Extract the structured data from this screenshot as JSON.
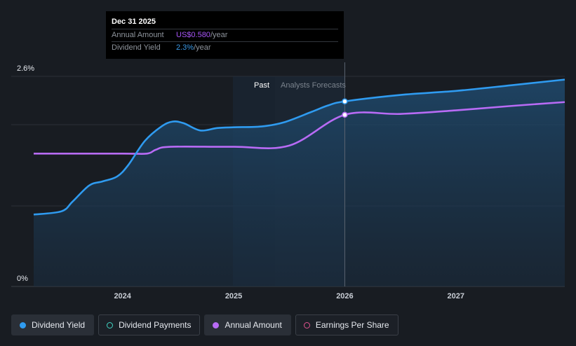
{
  "tooltip": {
    "date": "Dec 31 2025",
    "rows": [
      {
        "label": "Annual Amount",
        "value": "US$0.580",
        "unit": "/year",
        "color": "#a855f7"
      },
      {
        "label": "Dividend Yield",
        "value": "2.3%",
        "unit": "/year",
        "color": "#3b9ae8"
      }
    ]
  },
  "regions": {
    "past_label": "Past",
    "forecast_label": "Analysts Forecasts"
  },
  "legend": [
    {
      "label": "Dividend Yield",
      "color": "#2f9bf0",
      "style": "filled",
      "active": true
    },
    {
      "label": "Dividend Payments",
      "color": "#3fd6c4",
      "style": "hollow",
      "active": false
    },
    {
      "label": "Annual Amount",
      "color": "#b86bf5",
      "style": "filled",
      "active": true
    },
    {
      "label": "Earnings Per Share",
      "color": "#e0528f",
      "style": "hollow",
      "active": false
    }
  ],
  "chart_data": {
    "type": "line",
    "xlabel": "",
    "ylabel": "",
    "x_ticks": [
      2024,
      2025,
      2026,
      2027
    ],
    "xlim": [
      2023.2,
      2027.98
    ],
    "ylim": [
      0,
      2.6
    ],
    "y_tick_labels": [
      "0%",
      "2.6%"
    ],
    "past_end": 2026.0,
    "series": [
      {
        "name": "Dividend Yield",
        "color": "#2f9bf0",
        "unit": "%",
        "points": [
          [
            2023.2,
            0.89
          ],
          [
            2023.45,
            0.93
          ],
          [
            2023.55,
            1.05
          ],
          [
            2023.7,
            1.25
          ],
          [
            2023.82,
            1.3
          ],
          [
            2023.95,
            1.36
          ],
          [
            2024.05,
            1.5
          ],
          [
            2024.2,
            1.8
          ],
          [
            2024.35,
            1.98
          ],
          [
            2024.45,
            2.04
          ],
          [
            2024.55,
            2.02
          ],
          [
            2024.7,
            1.93
          ],
          [
            2024.85,
            1.96
          ],
          [
            2025.0,
            1.97
          ],
          [
            2025.25,
            1.98
          ],
          [
            2025.45,
            2.03
          ],
          [
            2025.7,
            2.16
          ],
          [
            2025.85,
            2.24
          ],
          [
            2026.0,
            2.29
          ],
          [
            2026.5,
            2.37
          ],
          [
            2027.0,
            2.42
          ],
          [
            2027.5,
            2.49
          ],
          [
            2027.98,
            2.56
          ]
        ]
      },
      {
        "name": "Annual Amount",
        "color": "#b86bf5",
        "unit": "US$",
        "points": [
          [
            2023.2,
            0.449
          ],
          [
            2024.0,
            0.449
          ],
          [
            2024.22,
            0.449
          ],
          [
            2024.3,
            0.462
          ],
          [
            2024.43,
            0.472
          ],
          [
            2025.0,
            0.472
          ],
          [
            2025.5,
            0.476
          ],
          [
            2026.0,
            0.58
          ],
          [
            2026.5,
            0.583
          ],
          [
            2027.0,
            0.595
          ],
          [
            2027.5,
            0.61
          ],
          [
            2027.98,
            0.623
          ]
        ]
      }
    ],
    "highlight_x": 2026.0
  }
}
